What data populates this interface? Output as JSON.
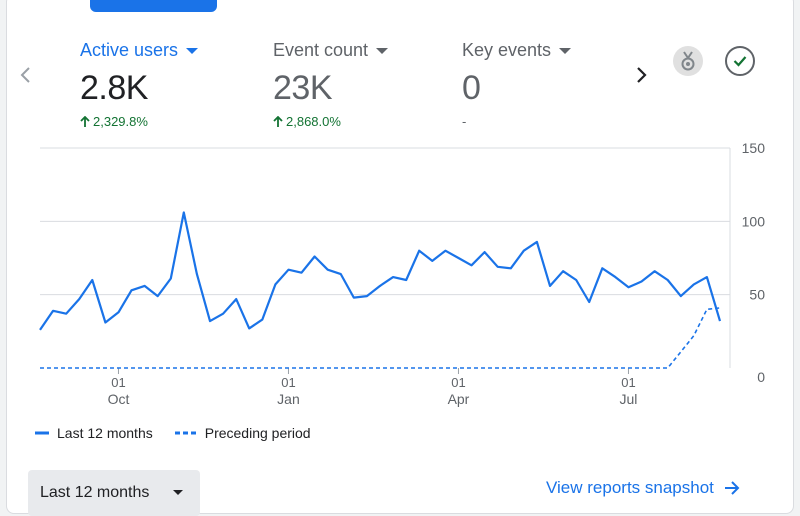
{
  "metrics": [
    {
      "label": "Active users",
      "value": "2.8K",
      "change": "2,329.8%",
      "trend": "up",
      "active": true
    },
    {
      "label": "Event count",
      "value": "23K",
      "change": "2,868.0%",
      "trend": "up",
      "active": false
    },
    {
      "label": "Key events",
      "value": "0",
      "change": "-",
      "trend": "none",
      "active": false
    }
  ],
  "nav": {
    "prev_icon": "chevron-left-icon",
    "next_icon": "chevron-right-icon"
  },
  "badges": {
    "medal_icon": "medal-icon",
    "check_icon": "check-circle-icon"
  },
  "chart_data": {
    "type": "line",
    "y_ticks": [
      "150",
      "100",
      "50",
      "0"
    ],
    "ylim": [
      0,
      150
    ],
    "x_ticks": [
      {
        "day": "01",
        "month": "Oct"
      },
      {
        "day": "01",
        "month": "Jan"
      },
      {
        "day": "01",
        "month": "Apr"
      },
      {
        "day": "01",
        "month": "Jul"
      }
    ],
    "x_tick_weeks": [
      6,
      19,
      32,
      45
    ],
    "series": [
      {
        "name": "Last 12 months",
        "style": "solid",
        "color": "#1a73e8",
        "values": [
          26,
          39,
          37,
          47,
          60,
          31,
          38,
          53,
          56,
          49,
          61,
          106,
          64,
          32,
          37,
          47,
          27,
          33,
          57,
          67,
          65,
          76,
          67,
          64,
          48,
          49,
          56,
          62,
          60,
          80,
          73,
          80,
          75,
          70,
          79,
          69,
          68,
          80,
          86,
          56,
          66,
          60,
          45,
          68,
          62,
          55,
          59,
          66,
          60,
          49,
          57,
          62,
          32
        ]
      },
      {
        "name": "Preceding period",
        "style": "dashed",
        "color": "#1a73e8",
        "values": [
          0,
          0,
          0,
          0,
          0,
          0,
          0,
          0,
          0,
          0,
          0,
          0,
          0,
          0,
          0,
          0,
          0,
          0,
          0,
          0,
          0,
          0,
          0,
          0,
          0,
          0,
          0,
          0,
          0,
          0,
          0,
          0,
          0,
          0,
          0,
          0,
          0,
          0,
          0,
          0,
          0,
          0,
          0,
          0,
          0,
          0,
          0,
          0,
          0,
          11,
          22,
          40,
          41
        ]
      }
    ]
  },
  "legend": [
    {
      "label": "Last 12 months",
      "style": "solid"
    },
    {
      "label": "Preceding period",
      "style": "dashed"
    }
  ],
  "footer": {
    "range_label": "Last 12 months",
    "view_link": "View reports snapshot"
  },
  "colors": {
    "accent": "#1a73e8",
    "positive": "#137333",
    "grid": "#dadce0"
  }
}
